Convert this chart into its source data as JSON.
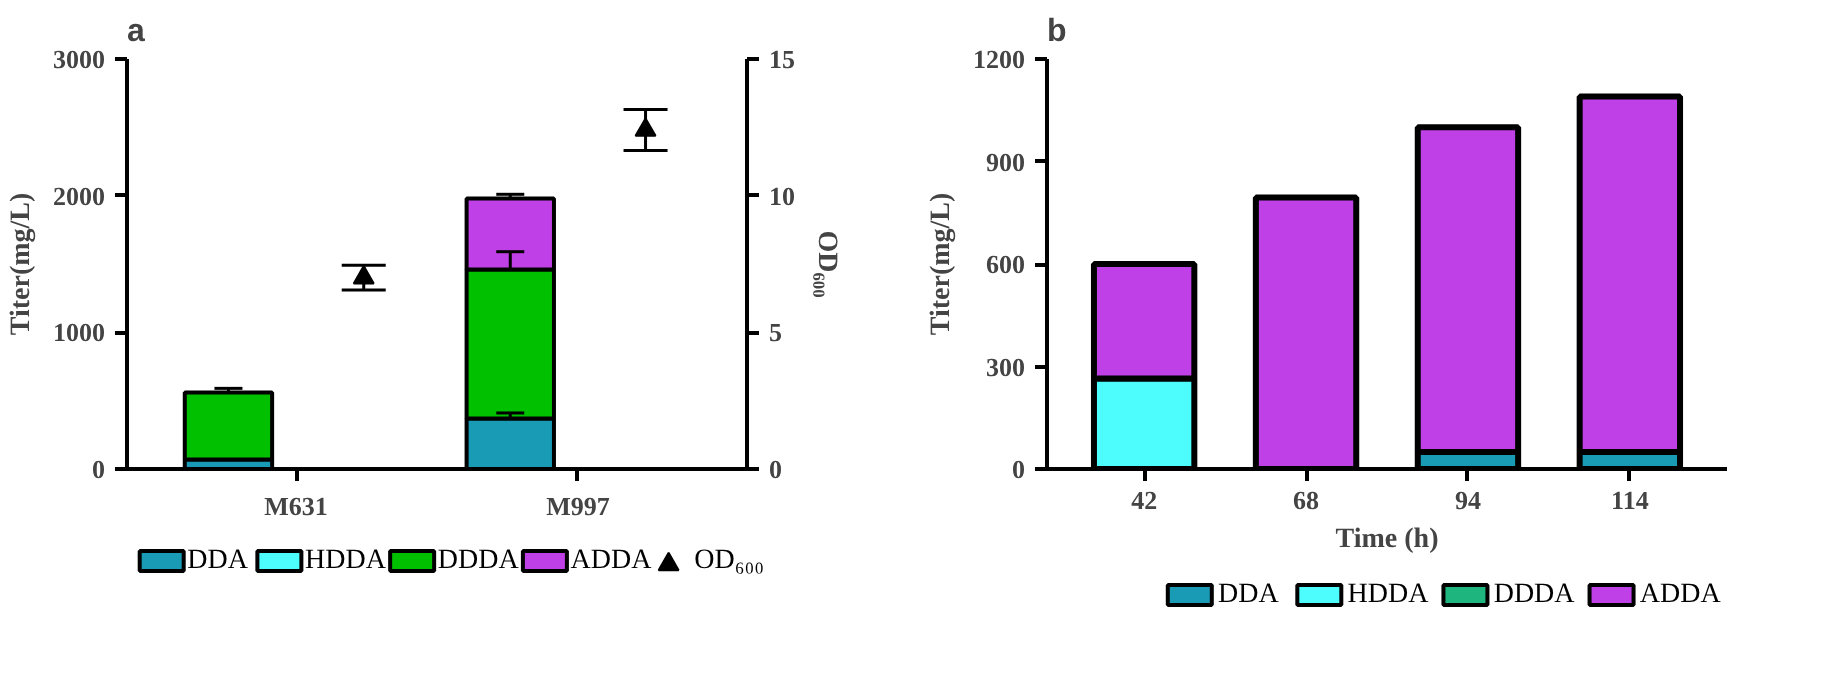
{
  "chart_data": [
    {
      "type": "bar",
      "title": "a",
      "stacked": true,
      "categories": [
        "M631",
        "M997"
      ],
      "ylabel": "Titer(mg/L)",
      "y2label": "OD₆₀₀",
      "ylim": [
        0,
        3000
      ],
      "yticks": [
        0,
        1000,
        2000,
        3000
      ],
      "y2lim": [
        0,
        15
      ],
      "y2ticks": [
        0,
        5,
        10,
        15
      ],
      "legend": "bottom",
      "grid": false,
      "series": [
        {
          "name": "DDA",
          "color": "#1a9bb5",
          "values": [
            70,
            370
          ],
          "errors": [
            null,
            40
          ]
        },
        {
          "name": "HDDA",
          "color": "#4dfdfd",
          "values": [
            0,
            0
          ]
        },
        {
          "name": "DDDA",
          "color": "#00c000",
          "values": [
            490,
            1090
          ],
          "errors": [
            30,
            130
          ]
        },
        {
          "name": "ADDA",
          "color": "#c040e8",
          "values": [
            0,
            520
          ],
          "errors": [
            null,
            30
          ]
        },
        {
          "name": "OD₆₀₀",
          "type": "scatter",
          "axis": "y2",
          "marker": "triangle",
          "color": "#000000",
          "x": [
            "M631",
            "M997"
          ],
          "values": [
            7.0,
            12.4
          ],
          "errors": [
            0.45,
            0.75
          ]
        }
      ]
    },
    {
      "type": "bar",
      "title": "b",
      "stacked": true,
      "categories": [
        "42",
        "68",
        "94",
        "114"
      ],
      "xlabel": "Time (h)",
      "ylabel": "Titer(mg/L)",
      "ylim": [
        0,
        1200
      ],
      "yticks": [
        0,
        300,
        600,
        900,
        1200
      ],
      "legend": "bottom",
      "grid": false,
      "series": [
        {
          "name": "DDA",
          "color": "#1a9bb5",
          "values": [
            0,
            0,
            50,
            50
          ]
        },
        {
          "name": "HDDA",
          "color": "#4dfdfd",
          "values": [
            265,
            0,
            0,
            0
          ]
        },
        {
          "name": "DDDA",
          "color": "#1fb57e",
          "values": [
            0,
            0,
            0,
            0
          ]
        },
        {
          "name": "ADDA",
          "color": "#c040e8",
          "values": [
            335,
            795,
            950,
            1040
          ]
        }
      ]
    }
  ]
}
